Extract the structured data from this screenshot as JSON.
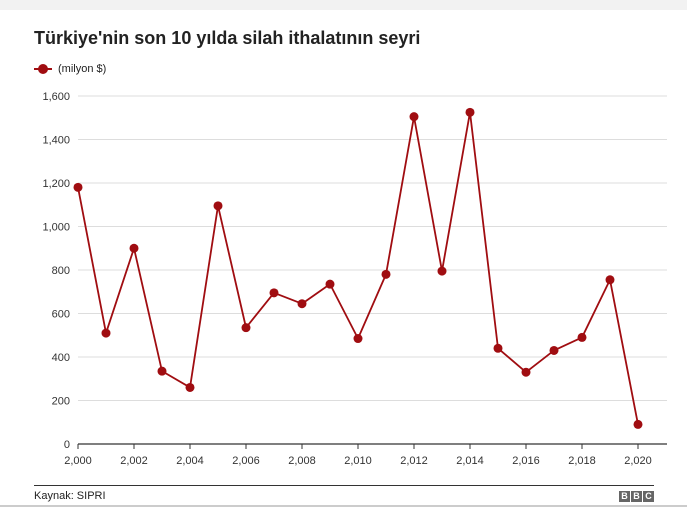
{
  "chart_data": {
    "type": "line",
    "title": "Türkiye'nin son 10 yılda silah ithalatının seyri",
    "xlabel": "",
    "ylabel": "",
    "xlim": [
      2000,
      2020
    ],
    "ylim": [
      0,
      1600
    ],
    "x_ticks": [
      "2,000",
      "2,002",
      "2,004",
      "2,006",
      "2,008",
      "2,010",
      "2,012",
      "2,014",
      "2,016",
      "2,018",
      "2,020"
    ],
    "x_tick_values": [
      2000,
      2002,
      2004,
      2006,
      2008,
      2010,
      2012,
      2014,
      2016,
      2018,
      2020
    ],
    "y_ticks": [
      "0",
      "200",
      "400",
      "600",
      "800",
      "1,000",
      "1,200",
      "1,400",
      "1,600"
    ],
    "y_tick_values": [
      0,
      200,
      400,
      600,
      800,
      1000,
      1200,
      1400,
      1600
    ],
    "grid": true,
    "legend": "top-left",
    "series": [
      {
        "name": "(milyon $)",
        "color": "#a00d11",
        "x": [
          2000,
          2001,
          2002,
          2003,
          2004,
          2005,
          2006,
          2007,
          2008,
          2009,
          2010,
          2011,
          2012,
          2013,
          2014,
          2015,
          2016,
          2017,
          2018,
          2019,
          2020
        ],
        "values": [
          1180,
          510,
          900,
          335,
          260,
          1095,
          535,
          695,
          645,
          735,
          485,
          780,
          1505,
          795,
          1525,
          440,
          330,
          430,
          490,
          755,
          90
        ]
      }
    ]
  },
  "footer": {
    "source": "Kaynak: SIPRI",
    "logo": [
      "B",
      "B",
      "C"
    ]
  }
}
